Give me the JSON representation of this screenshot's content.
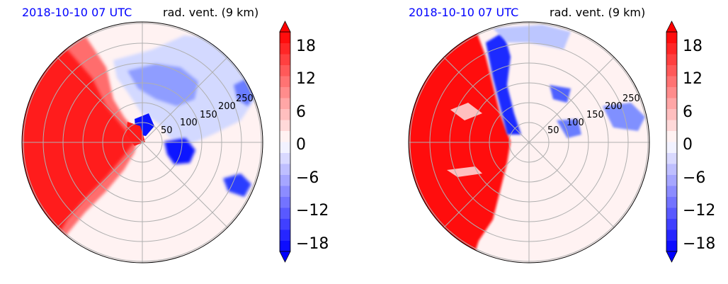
{
  "chart_data": [
    {
      "type": "heatmap",
      "projection": "polar",
      "title_left": "2018-10-10 07 UTC",
      "title_right": "rad. vent. (9 km)",
      "radial_ticks": [
        "50",
        "100",
        "150",
        "200",
        "250"
      ],
      "colorbar": {
        "ticks": [
          "18",
          "12",
          "6",
          "0",
          "−6",
          "−12",
          "−18"
        ],
        "tick_values": [
          18,
          12,
          6,
          0,
          -6,
          -12,
          -18
        ],
        "range": [
          -20,
          20
        ],
        "extend": "both",
        "colormap": "bwr"
      },
      "colors": {
        "title_left": "#0000ff",
        "positive": "#ff0000",
        "negative": "#0000ff",
        "grid": "#b0b0b0"
      }
    },
    {
      "type": "heatmap",
      "projection": "polar",
      "title_left": "2018-10-10 07 UTC",
      "title_right": "rad. vent. (9 km)",
      "radial_ticks": [
        "50",
        "100",
        "150",
        "200",
        "250"
      ],
      "colorbar": {
        "ticks": [
          "18",
          "12",
          "6",
          "0",
          "−6",
          "−12",
          "−18"
        ],
        "tick_values": [
          18,
          12,
          6,
          0,
          -6,
          -12,
          -18
        ],
        "range": [
          -20,
          20
        ],
        "extend": "both",
        "colormap": "bwr"
      },
      "colors": {
        "title_left": "#0000ff",
        "positive": "#ff0000",
        "negative": "#0000ff",
        "grid": "#b0b0b0"
      }
    }
  ]
}
